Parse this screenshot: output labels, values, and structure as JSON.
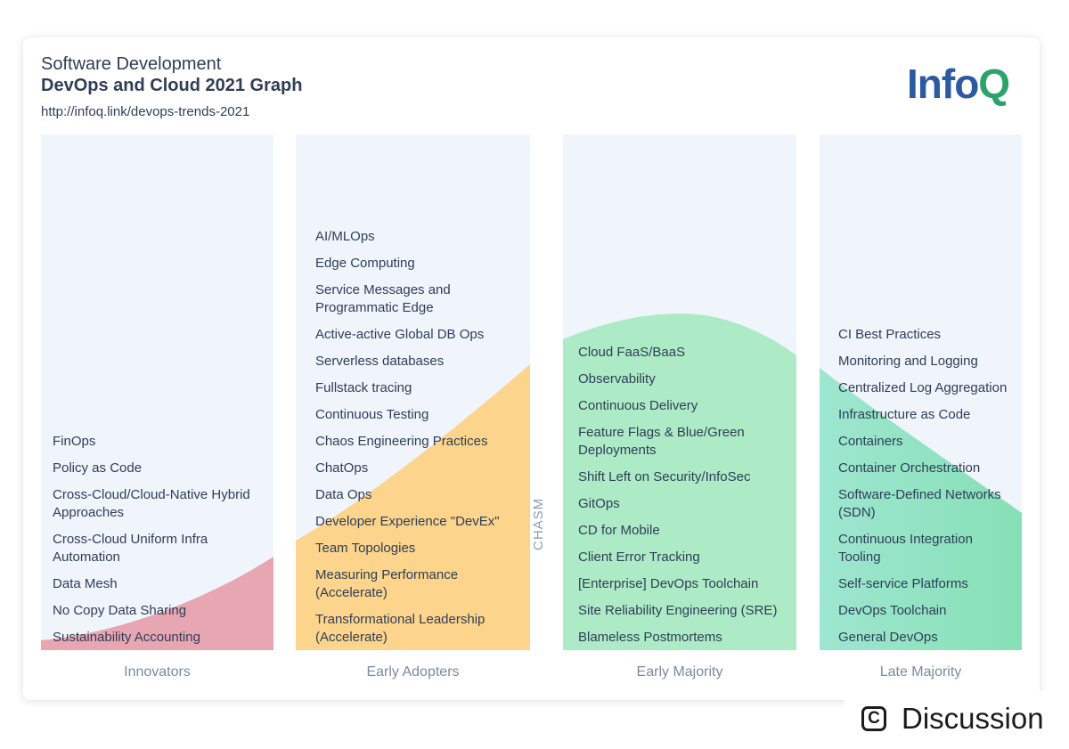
{
  "header": {
    "subtitle": "Software Development",
    "title": "DevOps and Cloud 2021 Graph",
    "link": "http://infoq.link/devops-trends-2021",
    "logo_part1": "Info",
    "logo_part2": "Q"
  },
  "columns": [
    {
      "label": "Innovators",
      "color": "#e8a5b2",
      "items": [
        "FinOps",
        "Policy as Code",
        "Cross-Cloud/Cloud-Native Hybrid Approaches",
        "Cross-Cloud Uniform Infra Automation",
        "Data Mesh",
        "No Copy Data Sharing",
        "Sustainability Accounting"
      ]
    },
    {
      "label": "Early Adopters",
      "color": "#fcd48b",
      "items": [
        "AI/MLOps",
        "Edge Computing",
        "Service Messages and Programmatic Edge",
        "Active-active Global DB Ops",
        "Serverless databases",
        "Fullstack tracing",
        "Continuous Testing",
        "Chaos Engineering Practices",
        "ChatOps",
        "Data Ops",
        "Developer Experience \"DevEx\"",
        "Team Topologies",
        "Measuring Performance (Accelerate)",
        "Transformational Leadership (Accelerate)"
      ]
    },
    {
      "label": "Early Majority",
      "color": "#acebc6",
      "items": [
        "Cloud FaaS/BaaS",
        "Observability",
        "Continuous Delivery",
        "Feature Flags & Blue/Green Deployments",
        "Shift Left on Security/InfoSec",
        "GitOps",
        "CD for Mobile",
        "Client Error Tracking",
        "[Enterprise] DevOps Toolchain",
        "Site Reliability Engineering (SRE)",
        "Blameless Postmortems"
      ]
    },
    {
      "label": "Late Majority",
      "color": "#8fe3c0",
      "items": [
        "CI Best Practices",
        "Monitoring and Logging",
        "Centralized Log Aggregation",
        "Infrastructure as Code",
        "Containers",
        "Container Orchestration",
        "Software-Defined Networks (SDN)",
        "Continuous Integration Tooling",
        "Self-service Platforms",
        "DevOps Toolchain",
        "General DevOps"
      ]
    }
  ],
  "chasm_label": "CHASM",
  "discussion": {
    "icon": "C",
    "label": "Discussion"
  }
}
